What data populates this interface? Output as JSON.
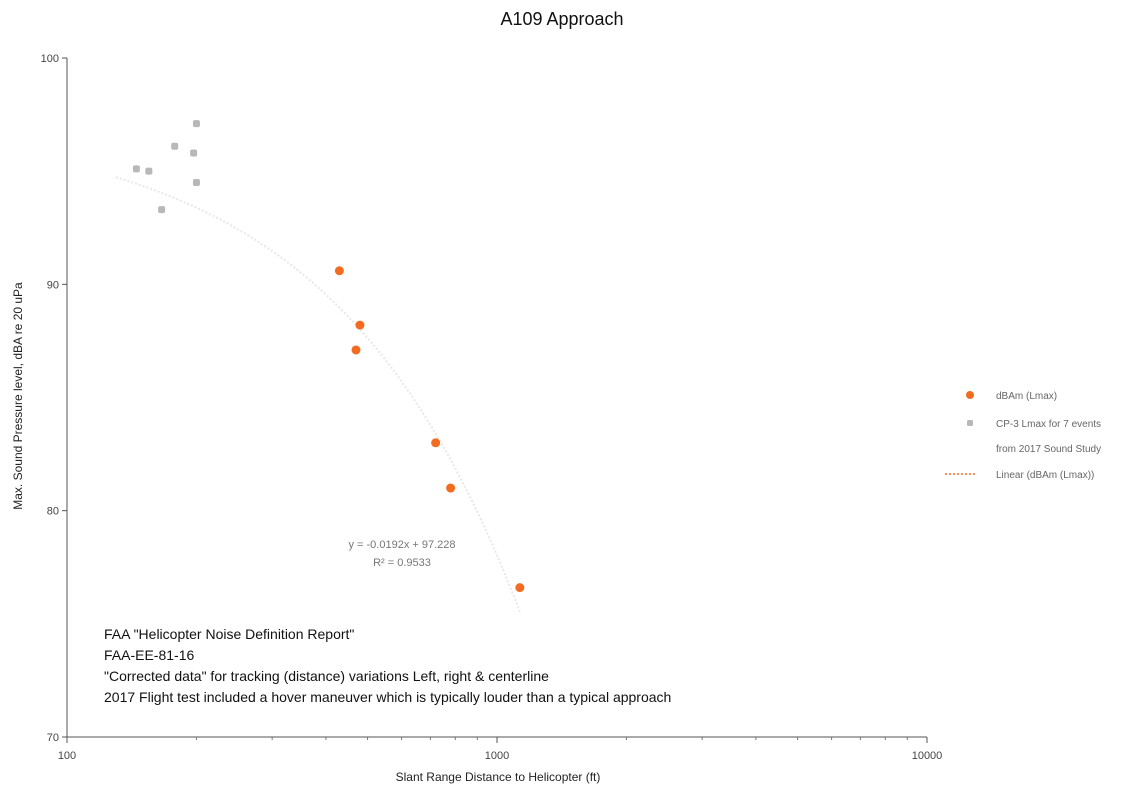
{
  "chart_data": {
    "type": "scatter",
    "title": "A109 Approach",
    "xlabel": "Slant Range Distance to Helicopter (ft)",
    "ylabel": "Max. Sound Pressure level, dBA re 20 uPa",
    "x_scale": "log",
    "xlim": [
      100,
      10000
    ],
    "ylim": [
      70,
      100
    ],
    "x_ticks": [
      "100",
      "1000",
      "10000"
    ],
    "y_ticks": [
      "70",
      "80",
      "90",
      "100"
    ],
    "grid": false,
    "legend_position": "right",
    "series": [
      {
        "name": "dBAm (Lmax)",
        "color": "#f26b21",
        "points": [
          {
            "x": 430,
            "y": 90.6
          },
          {
            "x": 480,
            "y": 88.2
          },
          {
            "x": 470,
            "y": 87.1
          },
          {
            "x": 720,
            "y": 83.0
          },
          {
            "x": 780,
            "y": 81.0
          },
          {
            "x": 1130,
            "y": 76.6
          }
        ]
      },
      {
        "name": "CP-3 Lmax for 7 events from 2017 Sound Study",
        "color": "#b8b8b8",
        "points": [
          {
            "x": 145,
            "y": 95.1
          },
          {
            "x": 155,
            "y": 95.0
          },
          {
            "x": 178,
            "y": 96.1
          },
          {
            "x": 197,
            "y": 95.8
          },
          {
            "x": 200,
            "y": 97.1
          },
          {
            "x": 200,
            "y": 94.5
          },
          {
            "x": 166,
            "y": 93.3
          }
        ]
      }
    ],
    "trendline": {
      "name": "Linear (dBAm (Lmax))",
      "color": "#f0a070",
      "slope": -0.0192,
      "intercept": 97.228,
      "x_range": [
        130,
        1130
      ]
    },
    "legend": [
      {
        "label": "dBAm (Lmax)",
        "kind": "marker",
        "color": "#f26b21"
      },
      {
        "label": "CP-3 Lmax for 7 events",
        "kind": "marker",
        "color": "#b8b8b8"
      },
      {
        "label": "from 2017 Sound Study",
        "kind": "text",
        "color": ""
      },
      {
        "label": "Linear (dBAm (Lmax))",
        "kind": "line",
        "color": "#f26b21"
      }
    ],
    "equation": "y = -0.0192x + 97.228",
    "r_squared": "R² = 0.9533",
    "notes": [
      "FAA \"Helicopter Noise Definition Report\"",
      "FAA-EE-81-16",
      "\"Corrected data\" for tracking (distance) variations Left, right & centerline",
      "2017 Flight test included a hover maneuver which is typically louder than a typical approach"
    ]
  }
}
